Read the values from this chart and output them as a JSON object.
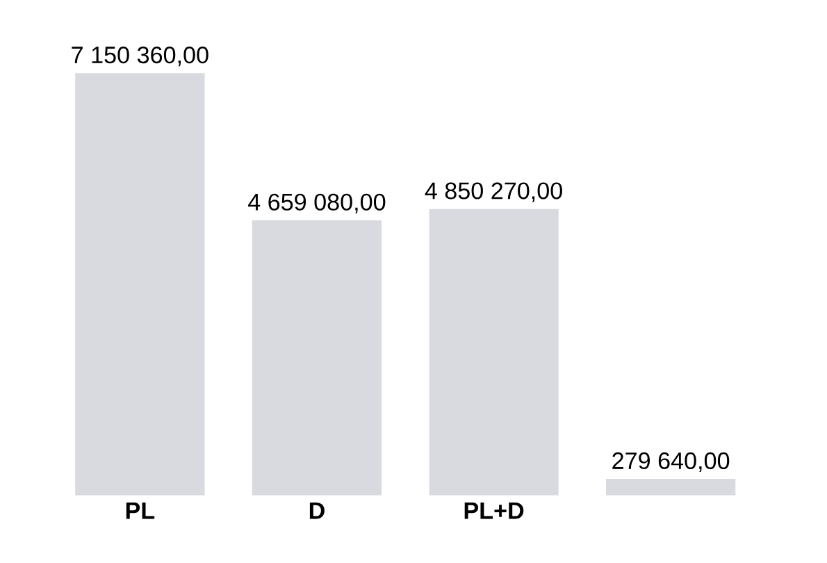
{
  "chart_data": {
    "type": "bar",
    "categories": [
      "PL",
      "D",
      "PL+D",
      null
    ],
    "values": [
      7150360,
      4659080,
      4850270,
      279640
    ],
    "colors": [
      "#d9dadf",
      "#d9dadf",
      "#d9dadf",
      "#d9dadf"
    ],
    "value_labels": [
      "7 150 360,00",
      "4 659 080,00",
      "4 850 270,00",
      "279 640,00"
    ]
  }
}
